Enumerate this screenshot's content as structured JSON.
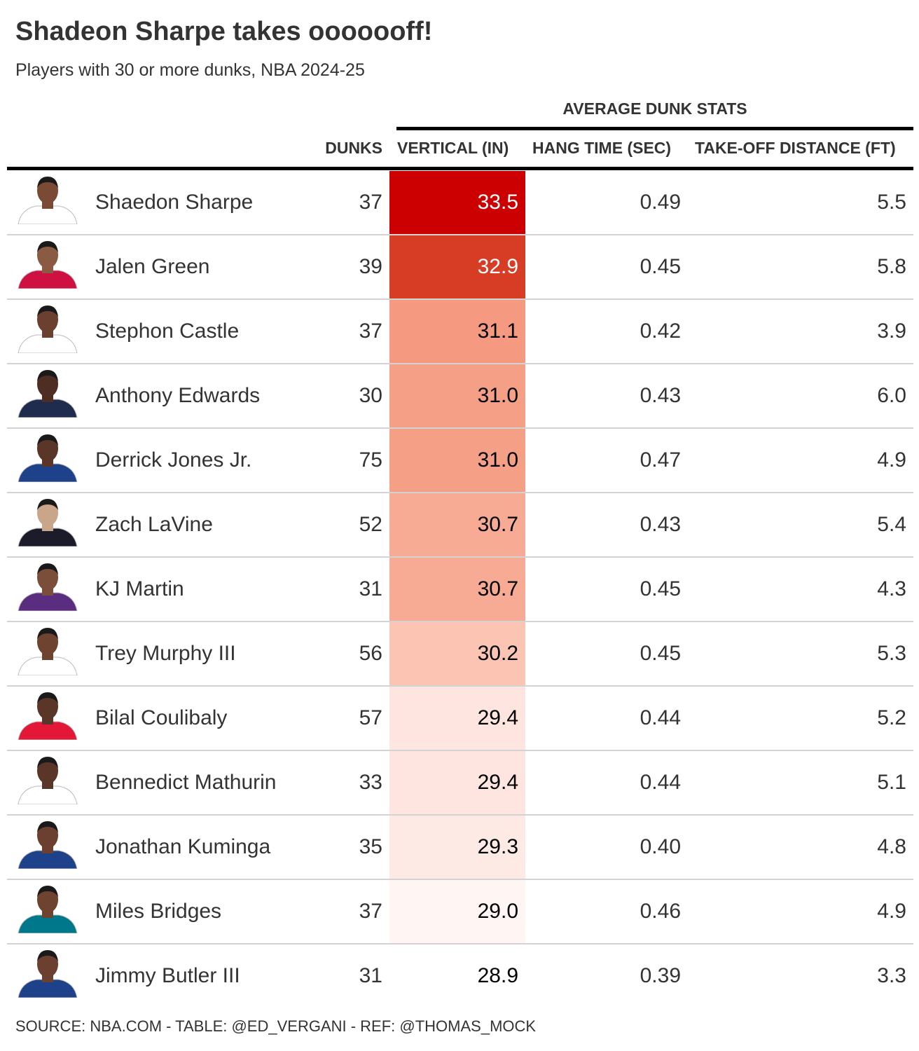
{
  "title": "Shadeon Sharpe takes ooooooff!",
  "subtitle": "Players with 30 or more dunks, NBA 2024-25",
  "spanner": "AVERAGE DUNK STATS",
  "columns": {
    "dunks": "DUNKS",
    "vertical": "VERTICAL (IN)",
    "hang": "HANG TIME (SEC)",
    "distance": "TAKE-OFF DISTANCE (FT)"
  },
  "source": "SOURCE: NBA.COM - TABLE: @ED_VERGANI - REF: @THOMAS_MOCK",
  "colors": {
    "vertical_scale": [
      "#fff5f0",
      "#fcbba1",
      "#fc9272",
      "#de2d26",
      "#cc0000"
    ]
  },
  "chart_data": {
    "type": "table",
    "title": "Shadeon Sharpe takes ooooooff!",
    "subtitle": "Players with 30 or more dunks, NBA 2024-25",
    "rows": [
      {
        "player": "Shaedon Sharpe",
        "dunks": "37",
        "vertical": "33.5",
        "hang": "0.49",
        "distance": "5.5",
        "fill": "#cc0000",
        "text_color": "#ffffff",
        "jersey": "#ffffff",
        "skin": "#7a4a34"
      },
      {
        "player": "Jalen Green",
        "dunks": "39",
        "vertical": "32.9",
        "hang": "0.45",
        "distance": "5.8",
        "fill": "#d73c24",
        "text_color": "#ffffff",
        "jersey": "#ce1141",
        "skin": "#8a5a42"
      },
      {
        "player": "Stephon Castle",
        "dunks": "37",
        "vertical": "31.1",
        "hang": "0.42",
        "distance": "3.9",
        "fill": "#f59a80",
        "text_color": "#000000",
        "jersey": "#ffffff",
        "skin": "#6b4030"
      },
      {
        "player": "Anthony Edwards",
        "dunks": "30",
        "vertical": "31.0",
        "hang": "0.43",
        "distance": "6.0",
        "fill": "#f59f86",
        "text_color": "#000000",
        "jersey": "#1f2c4e",
        "skin": "#4e2e22"
      },
      {
        "player": "Derrick Jones Jr.",
        "dunks": "75",
        "vertical": "31.0",
        "hang": "0.47",
        "distance": "4.9",
        "fill": "#f59f86",
        "text_color": "#000000",
        "jersey": "#1d428a",
        "skin": "#5a3628"
      },
      {
        "player": "Zach LaVine",
        "dunks": "52",
        "vertical": "30.7",
        "hang": "0.43",
        "distance": "5.4",
        "fill": "#f7ab95",
        "text_color": "#000000",
        "jersey": "#1b1b2a",
        "skin": "#c9a58a"
      },
      {
        "player": "KJ Martin",
        "dunks": "31",
        "vertical": "30.7",
        "hang": "0.45",
        "distance": "4.3",
        "fill": "#f7ab95",
        "text_color": "#000000",
        "jersey": "#5a2d81",
        "skin": "#7a4e38"
      },
      {
        "player": "Trey Murphy III",
        "dunks": "56",
        "vertical": "30.2",
        "hang": "0.45",
        "distance": "5.3",
        "fill": "#fbc4b3",
        "text_color": "#000000",
        "jersey": "#ffffff",
        "skin": "#6e432f"
      },
      {
        "player": "Bilal Coulibaly",
        "dunks": "57",
        "vertical": "29.4",
        "hang": "0.44",
        "distance": "5.2",
        "fill": "#fee5df",
        "text_color": "#000000",
        "jersey": "#e31837",
        "skin": "#5a3628"
      },
      {
        "player": "Bennedict Mathurin",
        "dunks": "33",
        "vertical": "29.4",
        "hang": "0.44",
        "distance": "5.1",
        "fill": "#fee5df",
        "text_color": "#000000",
        "jersey": "#ffffff",
        "skin": "#5a3628"
      },
      {
        "player": "Jonathan Kuminga",
        "dunks": "35",
        "vertical": "29.3",
        "hang": "0.40",
        "distance": "4.8",
        "fill": "#feeae5",
        "text_color": "#000000",
        "jersey": "#1d428a",
        "skin": "#6b4030"
      },
      {
        "player": "Miles Bridges",
        "dunks": "37",
        "vertical": "29.0",
        "hang": "0.46",
        "distance": "4.9",
        "fill": "#fff6f3",
        "text_color": "#000000",
        "jersey": "#00788c",
        "skin": "#6e432f"
      },
      {
        "player": "Jimmy Butler III",
        "dunks": "31",
        "vertical": "28.9",
        "hang": "0.39",
        "distance": "3.3",
        "fill": "#ffffff",
        "text_color": "#000000",
        "jersey": "#1d428a",
        "skin": "#6b4030"
      }
    ]
  }
}
